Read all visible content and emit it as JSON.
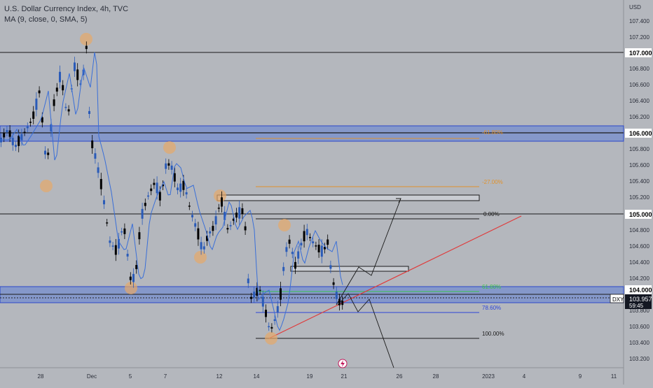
{
  "header": {
    "title": "U.S. Dollar Currency Index, 4h, TVC",
    "indicator": "MA (9, close, 0, SMA, 5)"
  },
  "axis": {
    "currency": "USD",
    "ticks": [
      "107.400",
      "107.200",
      "106.800",
      "106.600",
      "106.400",
      "106.200",
      "105.800",
      "105.600",
      "105.400",
      "105.200",
      "104.800",
      "104.600",
      "104.400",
      "104.200",
      "103.800",
      "103.600",
      "103.400",
      "103.200"
    ],
    "x_ticks": [
      "28",
      "Dec",
      "5",
      "7",
      "12",
      "14",
      "19",
      "21",
      "26",
      "28",
      "2023",
      "4",
      "9",
      "11"
    ]
  },
  "price_labels": {
    "p107": "107.000",
    "p106": "106.000",
    "p105": "105.000",
    "p104": "104.000",
    "current": "103.957",
    "countdown": "59:45",
    "symbol": "DXY"
  },
  "fib_labels": {
    "f100": "100.00%",
    "f786": "78.60%",
    "f618": "61.80%",
    "f0": "0.00%",
    "fm27": "-27.00%",
    "fm618": "-61.80%"
  },
  "colors": {
    "background": "#b4b7bd",
    "zone_fill": "#5f7fd6",
    "zone_border": "#2c47c9",
    "candle_up": "#2a5bb8",
    "candle_down": "#000000",
    "ma_line": "#3a6fd8",
    "trendline": "#e03a3a",
    "circles": "#e5a86a",
    "fib_orange": "#e0922c",
    "fib_green": "#36c24a",
    "fib_blue": "#2b45d8"
  },
  "icons": {
    "flash": "lightning-icon"
  }
}
